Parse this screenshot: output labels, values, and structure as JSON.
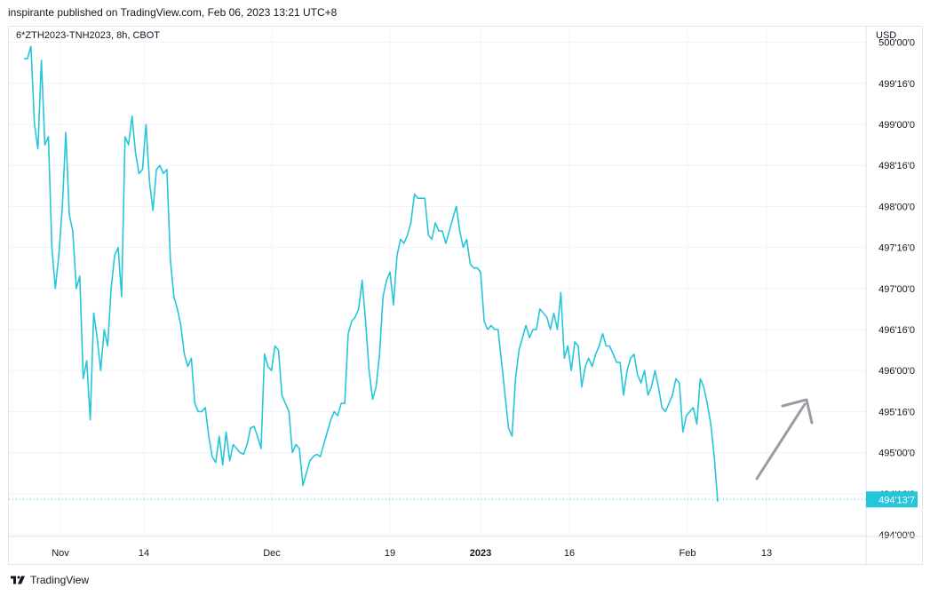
{
  "header": {
    "publisher_line": "inspirante published on TradingView.com, Feb 06, 2023 13:21 UTC+8",
    "symbol_line": "6*ZTH2023-TNH2023, 8h, CBOT",
    "currency": "USD"
  },
  "footer": {
    "brand": "TradingView",
    "logo_icon": "tradingview-logo-icon"
  },
  "colors": {
    "line": "#26c6da",
    "grid": "#f0f3fa",
    "arrow": "#9b9ba3",
    "last_price_bg": "#26c6da"
  },
  "chart_data": {
    "type": "line",
    "title": "6*ZTH2023-TNH2023, 8h, CBOT",
    "ylabel": "USD",
    "y_axis_labels": [
      "500'00'0",
      "499'16'0",
      "499'00'0",
      "498'16'0",
      "498'00'0",
      "497'16'0",
      "497'00'0",
      "496'16'0",
      "496'00'0",
      "495'16'0",
      "495'00'0",
      "494'16'0",
      "494'00'0"
    ],
    "y_axis_values": [
      500.0,
      499.5,
      499.0,
      498.5,
      498.0,
      497.5,
      497.0,
      496.5,
      496.0,
      495.5,
      495.0,
      494.5,
      494.0
    ],
    "x_axis_labels": [
      "Nov",
      "14",
      "Dec",
      "19",
      "2023",
      "16",
      "Feb",
      "13"
    ],
    "x_axis_bold": [
      false,
      false,
      false,
      false,
      true,
      false,
      false,
      false
    ],
    "last_price_label": "494'13'7",
    "last_price_value": 494.43,
    "grid": true,
    "annotation": "upward arrow drawing",
    "series": [
      {
        "values": [
          499.8,
          499.8,
          499.95,
          499.0,
          498.7,
          499.78,
          498.75,
          498.85,
          497.5,
          497.0,
          497.4,
          498.0,
          498.9,
          497.9,
          497.7,
          497.0,
          497.15,
          495.9,
          496.12,
          495.4,
          496.7,
          496.4,
          496.0,
          496.5,
          496.3,
          497.0,
          497.4,
          497.5,
          496.9,
          498.85,
          498.75,
          499.1,
          498.65,
          498.4,
          498.45,
          499.0,
          498.3,
          497.95,
          498.45,
          498.5,
          498.4,
          498.45,
          497.35,
          496.9,
          496.75,
          496.55,
          496.2,
          496.05,
          496.15,
          495.6,
          495.5,
          495.5,
          495.55,
          495.2,
          494.95,
          494.88,
          495.2,
          494.85,
          495.25,
          494.9,
          495.1,
          495.05,
          495.0,
          494.98,
          495.1,
          495.3,
          495.32,
          495.2,
          495.05,
          496.2,
          496.05,
          496.0,
          496.3,
          496.25,
          495.7,
          495.6,
          495.5,
          495.0,
          495.1,
          495.05,
          494.6,
          494.75,
          494.9,
          494.95,
          494.98,
          494.95,
          495.1,
          495.25,
          495.4,
          495.5,
          495.45,
          495.6,
          495.6,
          496.45,
          496.6,
          496.65,
          496.75,
          497.1,
          496.6,
          496.0,
          495.65,
          495.8,
          496.2,
          496.9,
          497.1,
          497.2,
          496.8,
          497.4,
          497.6,
          497.55,
          497.65,
          497.8,
          498.15,
          498.1,
          498.1,
          498.1,
          497.65,
          497.6,
          497.8,
          497.7,
          497.7,
          497.55,
          497.7,
          497.85,
          498.0,
          497.7,
          497.5,
          497.6,
          497.3,
          497.25,
          497.25,
          497.2,
          496.6,
          496.5,
          496.55,
          496.5,
          496.5,
          496.1,
          495.7,
          495.3,
          495.2,
          495.9,
          496.25,
          496.4,
          496.55,
          496.4,
          496.5,
          496.5,
          496.75,
          496.7,
          496.65,
          496.5,
          496.7,
          496.5,
          496.95,
          496.15,
          496.3,
          496.0,
          496.35,
          496.3,
          495.8,
          496.05,
          496.15,
          496.05,
          496.2,
          496.3,
          496.45,
          496.3,
          496.3,
          496.2,
          496.1,
          496.1,
          495.7,
          496.0,
          496.15,
          496.2,
          495.95,
          495.85,
          496.0,
          495.7,
          495.8,
          496.0,
          495.8,
          495.55,
          495.5,
          495.6,
          495.7,
          495.9,
          495.85,
          495.25,
          495.45,
          495.5,
          495.55,
          495.35,
          495.9,
          495.8,
          495.6,
          495.35,
          494.95,
          494.4
        ]
      }
    ]
  }
}
